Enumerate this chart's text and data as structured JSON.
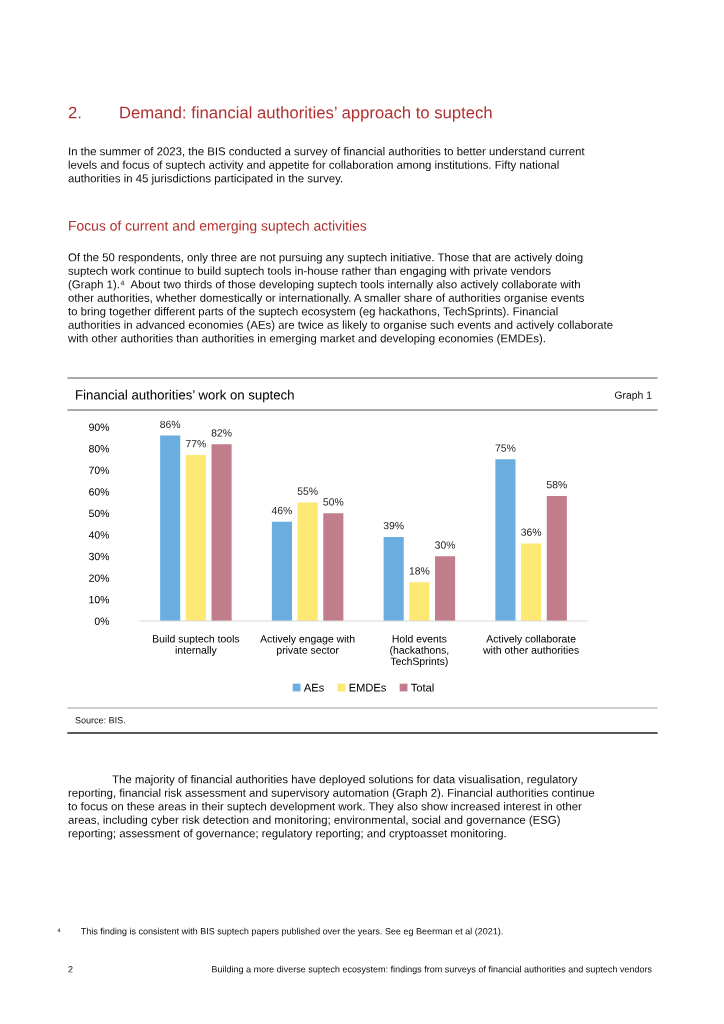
{
  "chart_data": {
    "type": "bar",
    "title": "Financial authorities’ work on suptech",
    "categories": [
      "Build suptech tools\ninternally",
      "Actively engage with\nprivate sector",
      "Hold events\n(hackathons,\nTechSprints)",
      "Actively collaborate\nwith other authorities"
    ],
    "series": [
      {
        "name": "AEs",
        "color": "#6aaee0",
        "values": [
          86,
          46,
          39,
          75
        ]
      },
      {
        "name": "EMDEs",
        "color": "#fde873",
        "values": [
          77,
          55,
          18,
          36
        ]
      },
      {
        "name": "Total",
        "color": "#c27d8c",
        "values": [
          82,
          50,
          30,
          58
        ]
      }
    ],
    "value_labels": [
      [
        "86%",
        "46%",
        "39%",
        "75%"
      ],
      [
        "77%",
        "55%",
        "18%",
        "36%"
      ],
      [
        "82%",
        "50%",
        "30%",
        "58%"
      ]
    ],
    "ylim": [
      0,
      90
    ],
    "yticks": [
      {
        "value": 0,
        "label": "0%"
      },
      {
        "value": 10,
        "label": "10%"
      },
      {
        "value": 20,
        "label": "20%"
      },
      {
        "value": 30,
        "label": "30%"
      },
      {
        "value": 40,
        "label": "40%"
      },
      {
        "value": 50,
        "label": "50%"
      },
      {
        "value": 60,
        "label": "60%"
      },
      {
        "value": 70,
        "label": "70%"
      },
      {
        "value": 80,
        "label": "80%"
      },
      {
        "value": 90,
        "label": "90%"
      }
    ],
    "grid": false,
    "legend": "bottom",
    "annotations": [
      "2.        Demand: financial authorities’ approach to suptech",
      "In the summer of 2023, the BIS conducted a survey of financial authorities to better understand current\nlevels and focus of suptech activity and appetite for collaboration among institutions. Fifty national\nauthorities in 45 jurisdictions participated in the survey.",
      "Focus of current and emerging suptech activities",
      "Of the 50 respondents, only three are not pursuing any suptech initiative. Those that are actively doing\nsuptech work continue to build suptech tools in-house rather than engaging with private vendors\n(Graph 1).⁴  About two thirds of those developing suptech tools internally also actively collaborate with\nother authorities, whether domestically or internationally. A smaller share of authorities organise events\nto bring together different parts of the suptech ecosystem (eg hackathons, TechSprints). Financial\nauthorities in advanced economies (AEs) are twice as likely to organise such events and actively collaborate\nwith other authorities than authorities in emerging market and developing economies (EMDEs).",
      "Graph 1",
      "Source: BIS.",
      "              The majority of financial authorities have deployed solutions for data visualisation, regulatory\nreporting, financial risk assessment and supervisory automation (Graph 2). Financial authorities continue\nto focus on these areas in their suptech development work. They also show increased interest in other\nareas, including cyber risk detection and monitoring; environmental, social and governance (ESG)\nreporting; assessment of governance; regulatory reporting; and cryptoasset monitoring.",
      "⁴        This finding is consistent with BIS suptech papers published over the years. See eg Beerman et al (2021).",
      "2",
      "Building a more diverse suptech ecosystem: findings from surveys of financial authorities and suptech vendors"
    ]
  }
}
